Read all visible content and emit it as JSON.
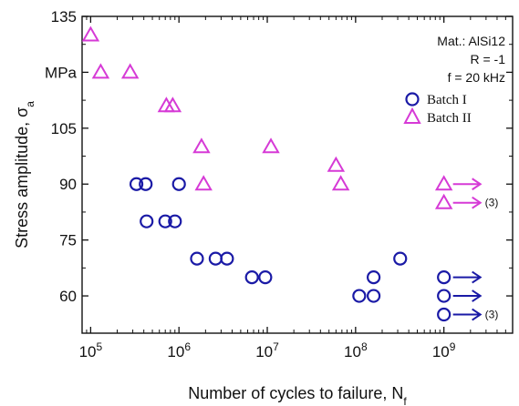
{
  "chart_data": {
    "type": "scatter",
    "xlabel": "Number of cycles to failure, N",
    "xlabel_sub": "f",
    "ylabel": "Stress amplitude, σ",
    "ylabel_sub": "a",
    "x_scale": "log",
    "xlim": [
      80000,
      6000000000
    ],
    "ylim": [
      50,
      135
    ],
    "y_ticks": [
      60,
      75,
      90,
      105,
      120,
      135
    ],
    "y_tick_labels": [
      "60",
      "75",
      "90",
      "105",
      "MPa",
      "135"
    ],
    "x_ticks": [
      {
        "base": "10",
        "exp": "5",
        "value": 100000
      },
      {
        "base": "10",
        "exp": "6",
        "value": 1000000
      },
      {
        "base": "10",
        "exp": "7",
        "value": 10000000
      },
      {
        "base": "10",
        "exp": "8",
        "value": 100000000
      },
      {
        "base": "10",
        "exp": "9",
        "value": 1000000000
      }
    ],
    "annotation_lines": [
      "Mat.: AlSi12",
      "R = -1",
      "f = 20 kHz"
    ],
    "grid": false,
    "legend_position": "top-right",
    "series": [
      {
        "name": "Batch I",
        "marker": "circle",
        "color": "#1a1aa6",
        "points": [
          [
            330000,
            90
          ],
          [
            420000,
            90
          ],
          [
            1000000,
            90
          ],
          [
            430000,
            80
          ],
          [
            700000,
            80
          ],
          [
            900000,
            80
          ],
          [
            1600000,
            70
          ],
          [
            2600000,
            70
          ],
          [
            3500000,
            70
          ],
          [
            6700000,
            65
          ],
          [
            9500000,
            65
          ],
          [
            320000000,
            70
          ],
          [
            160000000,
            65
          ],
          [
            110000000,
            60
          ],
          [
            160000000,
            60
          ]
        ],
        "runouts": [
          [
            1000000000,
            65
          ],
          [
            1000000000,
            60
          ],
          [
            1000000000,
            55
          ]
        ]
      },
      {
        "name": "Batch II",
        "marker": "triangle",
        "color": "#d63ad6",
        "points": [
          [
            100000,
            130
          ],
          [
            130000,
            120
          ],
          [
            280000,
            120
          ],
          [
            720000,
            111
          ],
          [
            850000,
            111
          ],
          [
            1800000,
            100
          ],
          [
            11000000,
            100
          ],
          [
            1900000,
            90
          ],
          [
            60000000,
            95
          ],
          [
            68000000,
            90
          ]
        ],
        "runouts": [
          [
            1000000000,
            90
          ],
          [
            1000000000,
            85
          ]
        ]
      }
    ],
    "runout_notes": [
      {
        "text": "(3)",
        "x": 1000000000,
        "y": 85
      },
      {
        "text": "(3)",
        "x": 1000000000,
        "y": 55
      }
    ]
  }
}
